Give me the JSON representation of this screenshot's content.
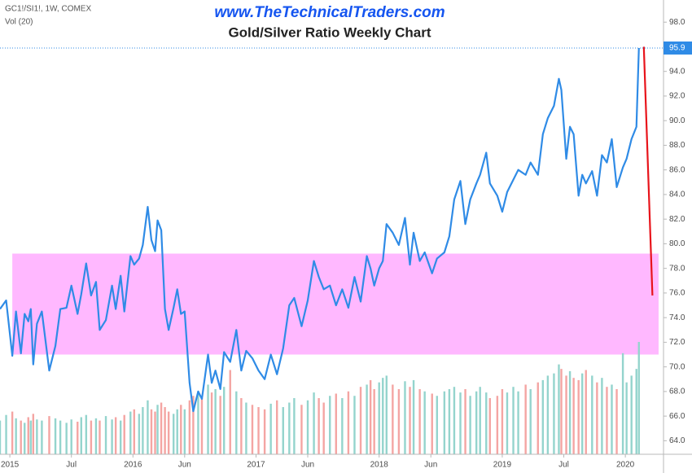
{
  "chart_data": {
    "type": "line",
    "symbol": "GC1!/SI1!, 1W, COMEX",
    "watermark": "www.TheTechnicalTraders.com",
    "title": "Gold/Silver Ratio Weekly Chart",
    "xlim": [
      2014.92,
      2020.31
    ],
    "xticks": [
      {
        "value": 2015,
        "label": "2015"
      },
      {
        "value": 2015.5,
        "label": "Jul"
      },
      {
        "value": 2016,
        "label": "2016"
      },
      {
        "value": 2016.42,
        "label": "Jun"
      },
      {
        "value": 2017,
        "label": "2017"
      },
      {
        "value": 2017.42,
        "label": "Jun"
      },
      {
        "value": 2018,
        "label": "2018"
      },
      {
        "value": 2018.42,
        "label": "Jun"
      },
      {
        "value": 2019,
        "label": "2019"
      },
      {
        "value": 2019.5,
        "label": "Jul"
      },
      {
        "value": 2020,
        "label": "2020"
      }
    ],
    "ylim": [
      62.9,
      99.8
    ],
    "yticks": [
      {
        "value": 64,
        "label": "64.0"
      },
      {
        "value": 66,
        "label": "66.0"
      },
      {
        "value": 68,
        "label": "68.0"
      },
      {
        "value": 70,
        "label": "70.0"
      },
      {
        "value": 72,
        "label": "72.0"
      },
      {
        "value": 74,
        "label": "74.0"
      },
      {
        "value": 76,
        "label": "76.0"
      },
      {
        "value": 78,
        "label": "78.0"
      },
      {
        "value": 80,
        "label": "80.0"
      },
      {
        "value": 82,
        "label": "82.0"
      },
      {
        "value": 84,
        "label": "84.0"
      },
      {
        "value": 86,
        "label": "86.0"
      },
      {
        "value": 88,
        "label": "88.0"
      },
      {
        "value": 90,
        "label": "90.0"
      },
      {
        "value": 92,
        "label": "92.0"
      },
      {
        "value": 94,
        "label": "94.0"
      },
      {
        "value": 96,
        "label": "96.0"
      },
      {
        "value": 98,
        "label": "98.0"
      }
    ],
    "grid": false,
    "band": {
      "from": 71,
      "to": 79.2,
      "x": [
        2015.02,
        2020.27
      ],
      "color": "#ffb8ff"
    },
    "series": [
      {
        "color": "#2f8be6",
        "x": [
          2014.92,
          2014.97,
          2015.02,
          2015.05,
          2015.09,
          2015.12,
          2015.15,
          2015.17,
          2015.19,
          2015.22,
          2015.26,
          2015.32,
          2015.37,
          2015.41,
          2015.46,
          2015.5,
          2015.55,
          2015.58,
          2015.62,
          2015.66,
          2015.7,
          2015.73,
          2015.78,
          2015.83,
          2015.86,
          2015.9,
          2015.93,
          2015.98,
          2016.01,
          2016.05,
          2016.08,
          2016.12,
          2016.15,
          2016.18,
          2016.2,
          2016.23,
          2016.26,
          2016.29,
          2016.33,
          2016.36,
          2016.39,
          2016.42,
          2016.46,
          2016.49,
          2016.53,
          2016.56,
          2016.61,
          2016.64,
          2016.67,
          2016.71,
          2016.74,
          2016.79,
          2016.84,
          2016.88,
          2016.92,
          2016.97,
          2017.02,
          2017.07,
          2017.12,
          2017.17,
          2017.22,
          2017.27,
          2017.31,
          2017.37,
          2017.42,
          2017.47,
          2017.51,
          2017.55,
          2017.6,
          2017.65,
          2017.7,
          2017.75,
          2017.8,
          2017.85,
          2017.9,
          2017.93,
          2017.96,
          2018.0,
          2018.03,
          2018.06,
          2018.11,
          2018.16,
          2018.21,
          2018.25,
          2018.28,
          2018.33,
          2018.37,
          2018.43,
          2018.47,
          2018.53,
          2018.57,
          2018.61,
          2018.66,
          2018.7,
          2018.74,
          2018.79,
          2018.82,
          2018.87,
          2018.9,
          2018.96,
          2019.0,
          2019.04,
          2019.09,
          2019.13,
          2019.19,
          2019.23,
          2019.29,
          2019.33,
          2019.37,
          2019.42,
          2019.46,
          2019.48,
          2019.52,
          2019.55,
          2019.58,
          2019.62,
          2019.65,
          2019.68,
          2019.73,
          2019.77,
          2019.81,
          2019.85,
          2019.89,
          2019.93,
          2019.98,
          2020.01,
          2020.05,
          2020.09,
          2020.11
        ],
        "values": [
          74.7,
          75.4,
          70.9,
          74.5,
          71.1,
          74.3,
          73.7,
          74.7,
          70.2,
          73.5,
          74.5,
          69.7,
          71.7,
          74.7,
          74.8,
          76.6,
          74.3,
          75.9,
          78.4,
          75.8,
          76.9,
          73.0,
          73.8,
          76.6,
          74.7,
          77.4,
          74.5,
          79.0,
          78.3,
          78.8,
          79.9,
          83.0,
          80.3,
          79.4,
          81.9,
          81.1,
          74.7,
          73.0,
          74.8,
          76.3,
          74.3,
          74.5,
          68.7,
          66.4,
          68.0,
          67.4,
          71.0,
          68.7,
          69.7,
          68.2,
          71.2,
          70.4,
          73.0,
          69.7,
          71.3,
          70.7,
          69.7,
          69.0,
          71.0,
          69.4,
          71.5,
          75.0,
          75.6,
          73.3,
          75.4,
          78.6,
          77.3,
          76.3,
          76.6,
          75.0,
          76.3,
          74.8,
          77.3,
          75.3,
          79.0,
          78.0,
          76.6,
          78.0,
          78.6,
          81.6,
          80.9,
          79.9,
          82.1,
          78.3,
          80.9,
          78.6,
          79.3,
          77.6,
          78.8,
          79.3,
          80.6,
          83.6,
          85.1,
          81.6,
          83.6,
          84.9,
          85.6,
          87.4,
          84.9,
          83.9,
          82.6,
          84.2,
          85.2,
          86.0,
          85.6,
          86.6,
          85.6,
          88.9,
          90.2,
          91.2,
          93.4,
          92.5,
          86.9,
          89.5,
          88.9,
          83.9,
          85.6,
          84.9,
          85.9,
          83.9,
          87.2,
          86.6,
          88.5,
          84.6,
          86.2,
          86.9,
          88.5,
          89.5,
          95.9
        ]
      },
      {
        "color": "#e8141b",
        "x": [
          2020.15,
          2020.22
        ],
        "values": [
          96,
          75.8
        ]
      }
    ],
    "last_price_color": "#2f8be6",
    "volume": {
      "name": "Vol (20)",
      "ylim": [
        0,
        100
      ],
      "up_color": "#94d4cd",
      "down_color": "#f4a5a3",
      "values": [
        30,
        35,
        38,
        32,
        30,
        28,
        33,
        30,
        36,
        31,
        30,
        34,
        32,
        30,
        28,
        31,
        29,
        33,
        35,
        30,
        32,
        30,
        34,
        31,
        33,
        30,
        35,
        38,
        40,
        36,
        42,
        48,
        40,
        38,
        44,
        46,
        42,
        38,
        36,
        40,
        44,
        40,
        48,
        52,
        56,
        50,
        62,
        55,
        58,
        52,
        60,
        75,
        56,
        50,
        46,
        44,
        42,
        40,
        45,
        48,
        42,
        46,
        50,
        44,
        48,
        55,
        50,
        46,
        52,
        54,
        50,
        56,
        52,
        60,
        62,
        66,
        58,
        64,
        68,
        70,
        62,
        58,
        65,
        60,
        66,
        58,
        56,
        54,
        52,
        56,
        58,
        60,
        55,
        58,
        52,
        56,
        60,
        55,
        50,
        52,
        58,
        55,
        60,
        56,
        62,
        58,
        64,
        66,
        70,
        72,
        80,
        76,
        70,
        74,
        68,
        66,
        72,
        75,
        70,
        64,
        68,
        60,
        62,
        58,
        90,
        64,
        70,
        76,
        100
      ]
    }
  }
}
